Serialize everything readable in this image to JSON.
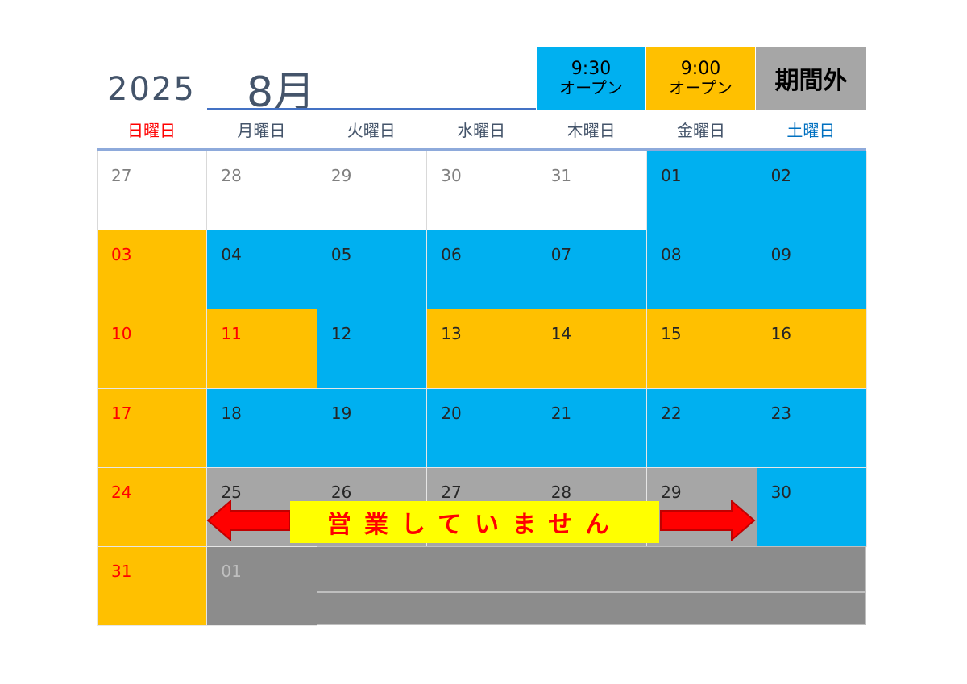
{
  "header": {
    "year": "2025",
    "month": "8月"
  },
  "legend": [
    {
      "line1": "9:30",
      "line2": "オープン",
      "color": "#00b0f0"
    },
    {
      "line1": "9:00",
      "line2": "オープン",
      "color": "#ffc000"
    },
    {
      "line1": "期間外",
      "line2": "",
      "color": "#a6a6a6"
    }
  ],
  "weekdays": [
    "日曜日",
    "月曜日",
    "火曜日",
    "水曜日",
    "木曜日",
    "金曜日",
    "土曜日"
  ],
  "weekday_colors": {
    "sunday": "#ff0000",
    "saturday": "#0070c0",
    "default": "#44546a"
  },
  "weeks": [
    [
      {
        "d": "27",
        "s": "none"
      },
      {
        "d": "28",
        "s": "none"
      },
      {
        "d": "29",
        "s": "none"
      },
      {
        "d": "30",
        "s": "none"
      },
      {
        "d": "31",
        "s": "none"
      },
      {
        "d": "01",
        "s": "930"
      },
      {
        "d": "02",
        "s": "930"
      }
    ],
    [
      {
        "d": "03",
        "s": "900"
      },
      {
        "d": "04",
        "s": "930"
      },
      {
        "d": "05",
        "s": "930"
      },
      {
        "d": "06",
        "s": "930"
      },
      {
        "d": "07",
        "s": "930"
      },
      {
        "d": "08",
        "s": "930"
      },
      {
        "d": "09",
        "s": "930"
      }
    ],
    [
      {
        "d": "10",
        "s": "900"
      },
      {
        "d": "11",
        "s": "900"
      },
      {
        "d": "12",
        "s": "930"
      },
      {
        "d": "13",
        "s": "900"
      },
      {
        "d": "14",
        "s": "900"
      },
      {
        "d": "15",
        "s": "900"
      },
      {
        "d": "16",
        "s": "900"
      }
    ],
    [
      {
        "d": "17",
        "s": "900"
      },
      {
        "d": "18",
        "s": "930"
      },
      {
        "d": "19",
        "s": "930"
      },
      {
        "d": "20",
        "s": "930"
      },
      {
        "d": "21",
        "s": "930"
      },
      {
        "d": "22",
        "s": "930"
      },
      {
        "d": "23",
        "s": "930"
      }
    ],
    [
      {
        "d": "24",
        "s": "900"
      },
      {
        "d": "25",
        "s": "closed"
      },
      {
        "d": "26",
        "s": "closed"
      },
      {
        "d": "27",
        "s": "closed"
      },
      {
        "d": "28",
        "s": "closed"
      },
      {
        "d": "29",
        "s": "closed"
      },
      {
        "d": "30",
        "s": "930"
      }
    ],
    [
      {
        "d": "31",
        "s": "900"
      },
      {
        "d": "01",
        "s": "outside"
      }
    ]
  ],
  "closed_banner": "営業していません",
  "colors": {
    "blue": "#00b0f0",
    "orange": "#ffc000",
    "gray": "#a6a6a6",
    "dark_gray": "#8c8c8c",
    "red": "#ff0000",
    "banner": "#ffff00"
  }
}
